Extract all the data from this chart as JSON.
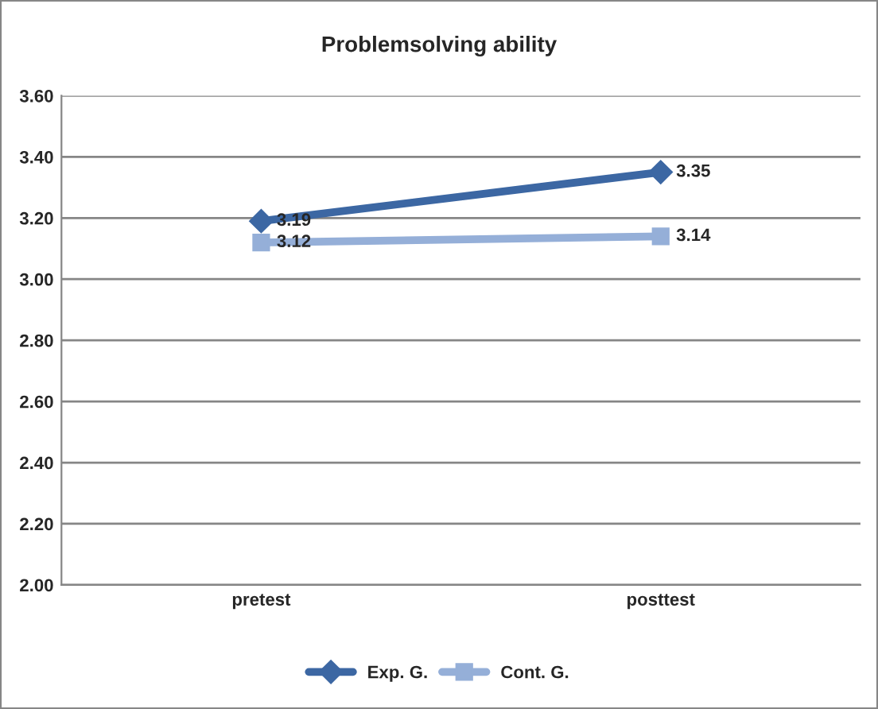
{
  "chart_data": {
    "type": "line",
    "title": "Problemsolving ability",
    "categories": [
      "pretest",
      "posttest"
    ],
    "series": [
      {
        "name": "Exp. G.",
        "color": "#3c67a3",
        "values": [
          3.19,
          3.35
        ],
        "marker": "diamond"
      },
      {
        "name": "Cont. G.",
        "color": "#95afd8",
        "values": [
          3.12,
          3.14
        ],
        "marker": "square"
      }
    ],
    "ylim": [
      2.0,
      3.6
    ],
    "yticks": [
      {
        "value": 2.0,
        "label": "2.00"
      },
      {
        "value": 2.2,
        "label": "2.20"
      },
      {
        "value": 2.4,
        "label": "2.40"
      },
      {
        "value": 2.6,
        "label": "2.60"
      },
      {
        "value": 2.8,
        "label": "2.80"
      },
      {
        "value": 3.0,
        "label": "3.00"
      },
      {
        "value": 3.2,
        "label": "3.20"
      },
      {
        "value": 3.4,
        "label": "3.40"
      },
      {
        "value": 3.6,
        "label": "3.60"
      }
    ],
    "grid": "y",
    "legend": "bottom",
    "data_labels": true,
    "line_style": "solid"
  }
}
